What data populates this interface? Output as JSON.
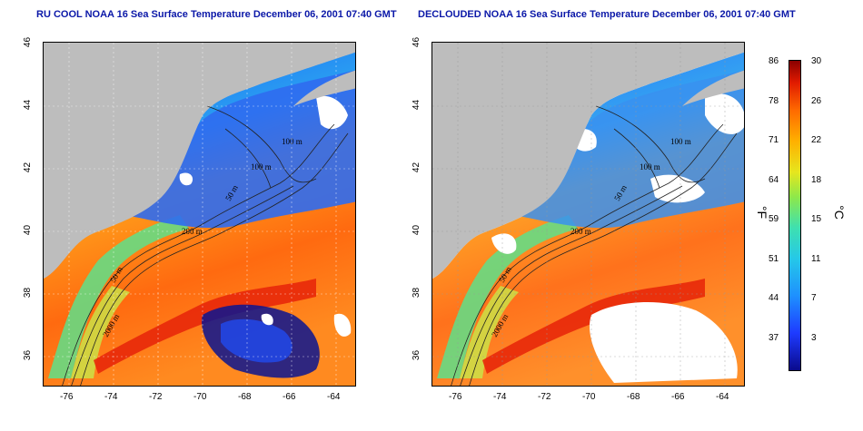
{
  "titles": {
    "left": "RU COOL NOAA 16 Sea Surface Temperature December 06, 2001 07:40 GMT",
    "right": "DECLOUDED NOAA 16 Sea Surface Temperature December 06, 2001 07:40 GMT"
  },
  "axes": {
    "lat_ticks": [
      "36",
      "38",
      "40",
      "42",
      "44",
      "46"
    ],
    "lon_ticks": [
      "-76",
      "-74",
      "-72",
      "-70",
      "-68",
      "-66",
      "-64"
    ]
  },
  "contours": {
    "labels": [
      "100 m",
      "100 m",
      "200 m",
      "50 m",
      "2000 m",
      "50 m"
    ]
  },
  "colorbar": {
    "fahrenheit_unit": "°F",
    "celsius_unit": "°C",
    "fahrenheit_ticks": [
      "86",
      "78",
      "71",
      "64",
      "59",
      "51",
      "44",
      "37"
    ],
    "celsius_ticks": [
      "30",
      "26",
      "22",
      "18",
      "15",
      "11",
      "7",
      "3"
    ]
  },
  "colors": {
    "land": "#bdbdbd",
    "cloud": "#ffffff",
    "title": "#0b18a8"
  }
}
